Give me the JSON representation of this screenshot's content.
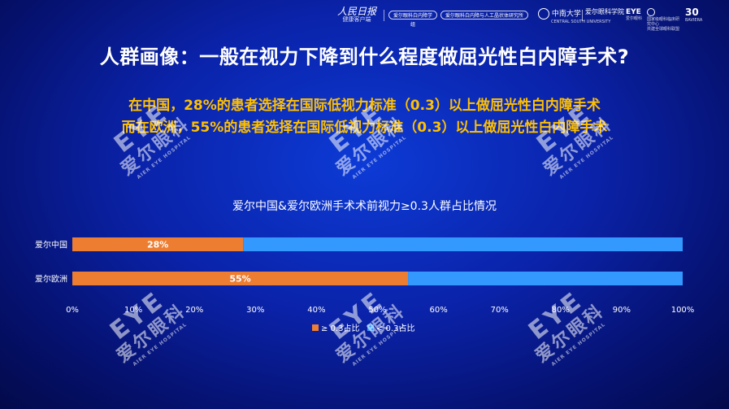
{
  "header": {
    "logo_main": "人民日报",
    "logo_sub": "健康客户端",
    "pills": [
      "爱尔眼科白内障学组",
      "爱尔眼科白内障与人工晶状体研究所"
    ],
    "orgs": [
      {
        "name": "中南大学",
        "sub": "CENTRAL SOUTH UNIVERSITY"
      },
      {
        "name": "爱尔眼科学院",
        "sub": ""
      },
      {
        "name": "EYE",
        "sub": "爱尔眼科"
      },
      {
        "name": "国家级眼科临床研究中心",
        "sub": "共建全球眼科联盟"
      },
      {
        "name": "30",
        "sub": "BAVIERA"
      }
    ]
  },
  "title": "人群画像：一般在视力下降到什么程度做屈光性白内障手术?",
  "subtitle_lines": [
    "在中国，28%的患者选择在国际低视力标准（0.3）以上做屈光性白内障手术",
    "而在欧洲，55%的患者选择在国际低视力标准（0.3）以上做屈光性白内障手术"
  ],
  "watermark": {
    "mark": "EYE",
    "text": "爱尔眼科",
    "small": "AIER EYE HOSPITAL"
  },
  "chart_data": {
    "type": "bar",
    "orientation": "horizontal",
    "stacked": "percent",
    "title": "爱尔中国&爱尔欧洲手术术前视力≥0.3人群占比情况",
    "categories": [
      "爱尔中国",
      "爱尔欧洲"
    ],
    "series": [
      {
        "name": "≥ 0.3占比",
        "values": [
          28,
          55
        ],
        "labels": [
          "28%",
          "55%"
        ],
        "color": "#ed7d31"
      },
      {
        "name": "< 0.3占比",
        "values": [
          72,
          45
        ],
        "color": "#3399ff"
      }
    ],
    "xlim": [
      0,
      100
    ],
    "xticks": [
      "0%",
      "10%",
      "20%",
      "30%",
      "40%",
      "50%",
      "60%",
      "70%",
      "80%",
      "90%",
      "100%"
    ],
    "legend_position": "bottom",
    "grid": false
  }
}
